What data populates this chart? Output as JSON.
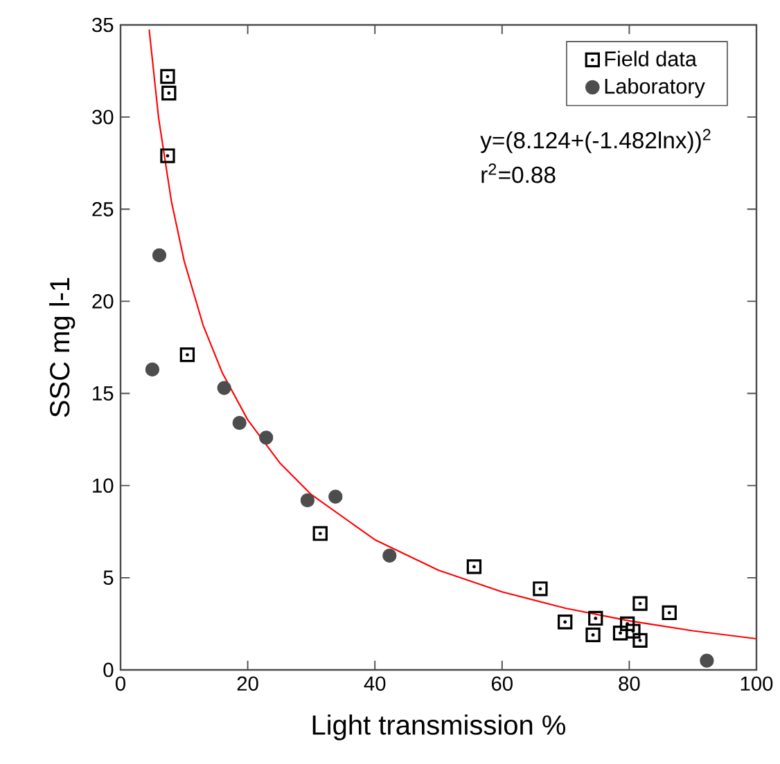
{
  "chart_data": {
    "type": "scatter",
    "xlabel": "Light transmission %",
    "ylabel": "SSC mg l-1",
    "xlim": [
      0,
      100
    ],
    "ylim": [
      0,
      35
    ],
    "xticks": [
      0,
      20,
      40,
      60,
      80,
      100
    ],
    "yticks": [
      0,
      5,
      10,
      15,
      20,
      25,
      30,
      35
    ],
    "legend": "top right",
    "grid": false,
    "annotations": [
      "y=(8.124+(-1.482lnx))$^{2}$",
      "r$^{2}$=0.88"
    ],
    "series": [
      {
        "name": "Field data",
        "color": "#000000",
        "marker": "square",
        "x": [
          7.4,
          7.6,
          7.4,
          10.5,
          31.4,
          55.6,
          66.0,
          69.9,
          74.3,
          74.7,
          78.6,
          79.7,
          80.6,
          81.7,
          81.7,
          86.3
        ],
        "values": [
          32.2,
          31.3,
          27.9,
          17.1,
          7.4,
          5.6,
          4.4,
          2.6,
          1.9,
          2.8,
          2.0,
          2.5,
          2.1,
          1.6,
          3.6,
          3.1
        ]
      },
      {
        "name": "Laboratory",
        "color": "#4d4d4d",
        "marker": "circle",
        "x": [
          6.1,
          5.0,
          16.3,
          18.7,
          22.9,
          29.4,
          33.8,
          42.3,
          92.2
        ],
        "values": [
          22.5,
          16.3,
          15.3,
          13.4,
          12.6,
          9.2,
          9.4,
          6.2,
          0.5
        ]
      },
      {
        "type": "line",
        "color": "#ff0000",
        "marker": "none",
        "x": [
          4.5,
          6,
          8,
          10,
          13,
          16,
          20,
          25,
          30,
          40,
          50,
          60,
          70,
          80,
          90,
          100
        ],
        "values": [
          34.75,
          29.91,
          25.42,
          22.2,
          18.69,
          16.12,
          13.57,
          11.25,
          9.51,
          7.06,
          5.41,
          4.23,
          3.34,
          2.66,
          2.12,
          1.69
        ]
      }
    ]
  }
}
